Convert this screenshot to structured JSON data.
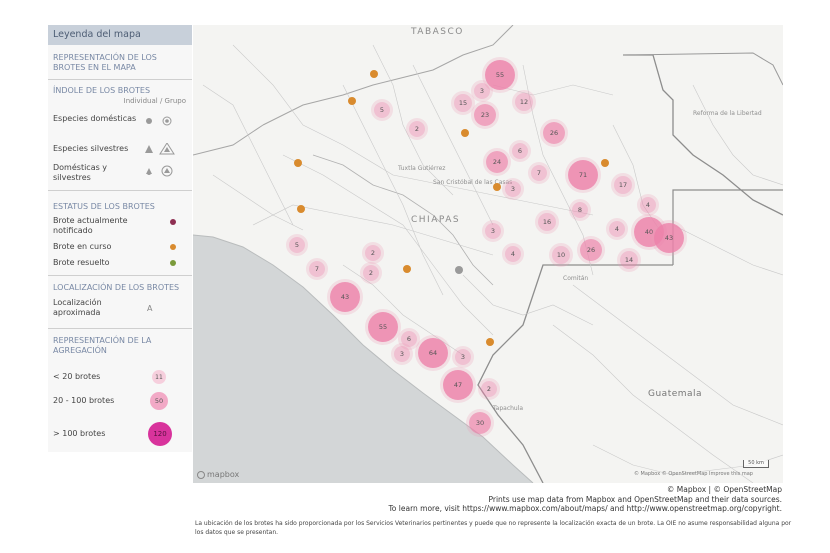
{
  "legend": {
    "title": "Leyenda del mapa",
    "subtitle": "REPRESENTACIÓN DE LOS BROTES EN EL MAPA",
    "section_type": "ÍNDOLE DE LOS BROTES",
    "type_cols": "Individual / Grupo",
    "types": [
      "Especies domésticas",
      "Especies silvestres",
      "Domésticas y silvestres"
    ],
    "section_status": "ESTATUS DE LOS BROTES",
    "statuses": [
      {
        "label": "Brote actualmente notificado",
        "color": "#8e2f52"
      },
      {
        "label": "Brote en curso",
        "color": "#d98b2e"
      },
      {
        "label": "Brote resuelto",
        "color": "#7a9a3a"
      }
    ],
    "section_location": "LOCALIZACIÓN DE LOS BROTES",
    "location_label": "Localización aproximada",
    "location_symbol": "A",
    "section_agg": "REPRESENTACIÓN DE LA AGREGACIÓN",
    "agg": [
      {
        "label": "< 20 brotes",
        "sample": "11"
      },
      {
        "label": "20 - 100 brotes",
        "sample": "50"
      },
      {
        "label": "> 100 brotes",
        "sample": "120"
      }
    ]
  },
  "map": {
    "places": {
      "tabasco": "TABASCO",
      "chiapas": "CHIAPAS",
      "guatemala": "Guatemala"
    },
    "small_places": [
      "Tuxtla Gutiérrez",
      "San Cristóbal de las Casas",
      "Tapachula",
      "Comitán",
      "Reforma de la Libertad"
    ],
    "clusters": [
      {
        "label": "55",
        "count": 55
      },
      {
        "label": "3",
        "count": 3
      },
      {
        "label": "15",
        "count": 15
      },
      {
        "label": "12",
        "count": 12
      },
      {
        "label": "23",
        "count": 23
      },
      {
        "label": "5",
        "count": 5
      },
      {
        "label": "2",
        "count": 2
      },
      {
        "label": "26",
        "count": 26
      },
      {
        "label": "24",
        "count": 24
      },
      {
        "label": "6",
        "count": 6
      },
      {
        "label": "7",
        "count": 7
      },
      {
        "label": "71",
        "count": 71
      },
      {
        "label": "17",
        "count": 17
      },
      {
        "label": "4",
        "count": 4
      },
      {
        "label": "3",
        "count": 3
      },
      {
        "label": "8",
        "count": 8
      },
      {
        "label": "16",
        "count": 16
      },
      {
        "label": "4",
        "count": 4
      },
      {
        "label": "40",
        "count": 40
      },
      {
        "label": "43",
        "count": 43
      },
      {
        "label": "3",
        "count": 3
      },
      {
        "label": "4",
        "count": 4
      },
      {
        "label": "10",
        "count": 10
      },
      {
        "label": "26",
        "count": 26
      },
      {
        "label": "14",
        "count": 14
      },
      {
        "label": "5",
        "count": 5
      },
      {
        "label": "2",
        "count": 2
      },
      {
        "label": "7",
        "count": 7
      },
      {
        "label": "2",
        "count": 2
      },
      {
        "label": "43",
        "count": 43
      },
      {
        "label": "55",
        "count": 55
      },
      {
        "label": "6",
        "count": 6
      },
      {
        "label": "3",
        "count": 3
      },
      {
        "label": "64",
        "count": 64
      },
      {
        "label": "3",
        "count": 3
      },
      {
        "label": "47",
        "count": 47
      },
      {
        "label": "2",
        "count": 2
      },
      {
        "label": "30",
        "count": 30
      }
    ],
    "ongoing_color": "#d98b2e",
    "resolved_color": "#9a9a9a",
    "cluster_fill": "#ec9ab8",
    "logo": "mapbox",
    "attribution": "© Mapbox © OpenStreetMap Improve this map",
    "scale": "50 km"
  },
  "credits": {
    "line1": "© Mapbox | © OpenStreetMap",
    "line2": "Prints use map data from Mapbox and OpenStreetMap and their data sources.",
    "line3": "To learn more, visit https://www.mapbox.com/about/maps/ and http://www.openstreetmap.org/copyright."
  },
  "disclaimer": "La ubicación de los brotes ha sido proporcionada por los Servicios Veterinarios pertinentes y puede que no represente la localización exacta de un brote. La OIE no asume responsabilidad alguna por los datos que se presentan."
}
